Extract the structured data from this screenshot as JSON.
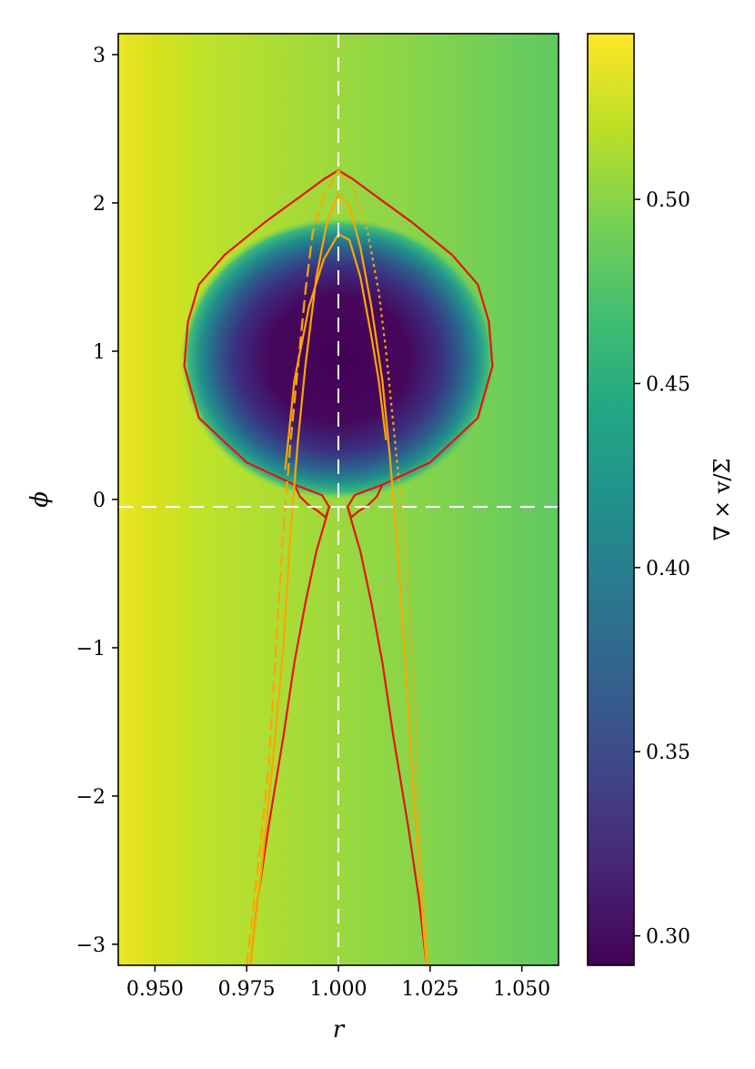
{
  "chart_data": {
    "type": "heatmap",
    "title": "",
    "xlabel": "r",
    "ylabel": "ϕ",
    "xlim": [
      0.94,
      1.06
    ],
    "ylim": [
      -3.14159,
      3.14159
    ],
    "x_ticks": [
      0.95,
      0.975,
      1.0,
      1.025,
      1.05
    ],
    "x_tick_labels": [
      "0.950",
      "0.975",
      "1.000",
      "1.025",
      "1.050"
    ],
    "y_ticks": [
      -3,
      -2,
      -1,
      0,
      1,
      2,
      3
    ],
    "y_tick_labels": [
      "−3",
      "−2",
      "−1",
      "0",
      "1",
      "2",
      "3"
    ],
    "colormap": "viridis",
    "colorbar": {
      "label": "∇ × v/Σ",
      "range": [
        0.292,
        0.545
      ],
      "ticks": [
        0.3,
        0.35,
        0.4,
        0.45,
        0.5
      ],
      "tick_labels": [
        "0.30",
        "0.35",
        "0.40",
        "0.45",
        "0.50"
      ]
    },
    "field": {
      "vortex_center": {
        "r": 1.0,
        "phi": 0.95
      },
      "vortex_min": 0.295,
      "background_inner": 0.535,
      "background_outer": 0.49
    },
    "reference_lines": [
      {
        "orientation": "vertical",
        "value": 1.0,
        "style": "dashed",
        "color": "#ffffff"
      },
      {
        "orientation": "horizontal",
        "value": -0.05,
        "style": "dashed",
        "color": "#ffffff"
      }
    ],
    "contours": [
      {
        "name": "separatrix-upper",
        "color": "#e8130b",
        "style": "solid",
        "points": [
          [
            0.9975,
            -0.05
          ],
          [
            0.9955,
            0.03
          ],
          [
            0.988,
            0.1
          ],
          [
            0.975,
            0.25
          ],
          [
            0.962,
            0.55
          ],
          [
            0.958,
            0.9
          ],
          [
            0.959,
            1.2
          ],
          [
            0.962,
            1.45
          ],
          [
            0.969,
            1.65
          ],
          [
            0.98,
            1.87
          ],
          [
            0.99,
            2.05
          ],
          [
            0.996,
            2.16
          ],
          [
            1.0,
            2.22
          ],
          [
            1.004,
            2.16
          ],
          [
            1.01,
            2.05
          ],
          [
            1.02,
            1.87
          ],
          [
            1.031,
            1.65
          ],
          [
            1.038,
            1.45
          ],
          [
            1.041,
            1.2
          ],
          [
            1.042,
            0.9
          ],
          [
            1.038,
            0.55
          ],
          [
            1.025,
            0.25
          ],
          [
            1.012,
            0.1
          ],
          [
            1.0045,
            0.03
          ],
          [
            1.0025,
            -0.05
          ]
        ]
      },
      {
        "name": "separatrix-lower",
        "color": "#e8130b",
        "style": "solid",
        "points": [
          [
            0.976,
            -3.14159
          ],
          [
            0.978,
            -2.7
          ],
          [
            0.981,
            -2.2
          ],
          [
            0.985,
            -1.6
          ],
          [
            0.988,
            -1.1
          ],
          [
            0.991,
            -0.7
          ],
          [
            0.994,
            -0.35
          ],
          [
            0.996,
            -0.18
          ],
          [
            0.9975,
            -0.05
          ],
          [
            0.9965,
            -0.12
          ],
          [
            0.9945,
            -0.08
          ],
          [
            0.992,
            -0.04
          ],
          [
            0.9895,
            0.02
          ],
          [
            0.988,
            0.1
          ]
        ]
      },
      {
        "name": "separatrix-lower-right",
        "color": "#e8130b",
        "style": "solid",
        "points": [
          [
            1.024,
            -3.14159
          ],
          [
            1.022,
            -2.7
          ],
          [
            1.019,
            -2.2
          ],
          [
            1.015,
            -1.6
          ],
          [
            1.012,
            -1.1
          ],
          [
            1.009,
            -0.7
          ],
          [
            1.006,
            -0.35
          ],
          [
            1.004,
            -0.18
          ],
          [
            1.0025,
            -0.05
          ],
          [
            1.0035,
            -0.12
          ],
          [
            1.0055,
            -0.08
          ],
          [
            1.008,
            -0.04
          ],
          [
            1.0105,
            0.02
          ],
          [
            1.012,
            0.1
          ]
        ]
      },
      {
        "name": "orange-solid-outer",
        "color": "#ffa500",
        "style": "solid",
        "points": [
          [
            0.976,
            -3.14159
          ],
          [
            0.979,
            -2.5
          ],
          [
            0.982,
            -1.8
          ],
          [
            0.985,
            -1.0
          ],
          [
            0.987,
            -0.2
          ],
          [
            0.989,
            0.4
          ],
          [
            0.991,
            0.9
          ],
          [
            0.994,
            1.5
          ],
          [
            0.997,
            1.88
          ],
          [
            1.0,
            2.06
          ],
          [
            1.003,
            1.98
          ],
          [
            1.006,
            1.7
          ],
          [
            1.009,
            1.3
          ],
          [
            1.012,
            0.8
          ],
          [
            1.014,
            0.3
          ],
          [
            1.016,
            -0.3
          ],
          [
            1.018,
            -1.0
          ],
          [
            1.02,
            -1.8
          ],
          [
            1.022,
            -2.5
          ],
          [
            1.024,
            -3.14159
          ]
        ]
      },
      {
        "name": "orange-solid-inner",
        "color": "#ffa500",
        "style": "solid",
        "points": [
          [
            0.9855,
            0.2
          ],
          [
            0.988,
            0.8
          ],
          [
            0.992,
            1.3
          ],
          [
            0.996,
            1.62
          ],
          [
            1.0,
            1.79
          ],
          [
            1.003,
            1.75
          ],
          [
            1.006,
            1.5
          ],
          [
            1.009,
            1.1
          ],
          [
            1.011,
            0.8
          ],
          [
            1.013,
            0.4
          ]
        ]
      },
      {
        "name": "orange-dashed",
        "color": "#ffa500",
        "style": "dashed",
        "points": [
          [
            0.975,
            -3.14159
          ],
          [
            0.978,
            -2.5
          ],
          [
            0.981,
            -1.8
          ],
          [
            0.983,
            -1.0
          ],
          [
            0.985,
            -0.2
          ],
          [
            0.987,
            0.4
          ],
          [
            0.989,
            0.9
          ],
          [
            0.991,
            1.4
          ],
          [
            0.993,
            1.8
          ],
          [
            0.996,
            2.05
          ],
          [
            1.0,
            2.22
          ]
        ]
      },
      {
        "name": "orange-dotted",
        "color": "#ffa500",
        "style": "dotted",
        "points": [
          [
            1.0,
            2.22
          ],
          [
            1.004,
            2.1
          ],
          [
            1.008,
            1.8
          ],
          [
            1.011,
            1.4
          ],
          [
            1.013,
            1.0
          ],
          [
            1.015,
            0.5
          ],
          [
            1.017,
            0.0
          ],
          [
            1.019,
            -0.6
          ],
          [
            1.021,
            -1.4
          ],
          [
            1.022,
            -2.2
          ],
          [
            1.0245,
            -3.14159
          ]
        ]
      }
    ]
  }
}
